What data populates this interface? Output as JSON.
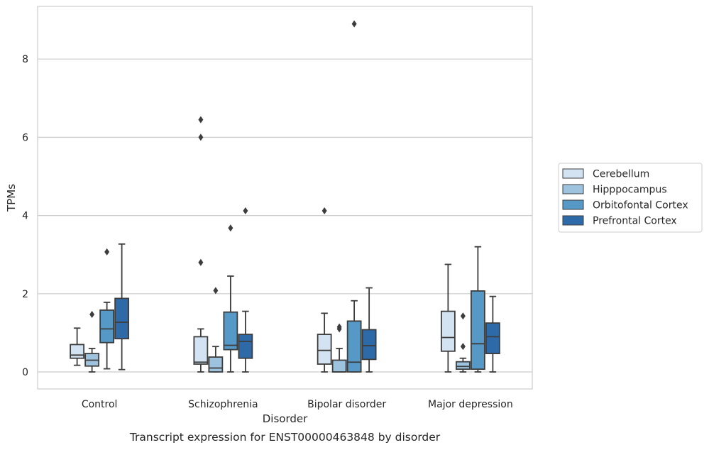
{
  "chart_data": {
    "type": "box",
    "title": "Transcript expression for ENST00000463848 by disorder",
    "xlabel": "Disorder",
    "ylabel": "TPMs",
    "ylim": [
      -0.42,
      9.3
    ],
    "yticks": [
      0,
      2,
      4,
      6,
      8
    ],
    "grid": "horizontal",
    "legend_position": "right",
    "categories": [
      "Control",
      "Schizophrenia",
      "Bipolar disorder",
      "Major depression"
    ],
    "series": [
      {
        "name": "Cerebellum",
        "color": "#d4e3f1",
        "boxes": [
          {
            "whislo": 0.17,
            "q1": 0.35,
            "med": 0.43,
            "q3": 0.7,
            "whishi": 1.12,
            "fliers": []
          },
          {
            "whislo": 0.0,
            "q1": 0.2,
            "med": 0.25,
            "q3": 0.9,
            "whishi": 1.1,
            "fliers": [
              2.8,
              6.0,
              6.45
            ]
          },
          {
            "whislo": 0.0,
            "q1": 0.2,
            "med": 0.55,
            "q3": 0.96,
            "whishi": 1.5,
            "fliers": [
              4.12
            ]
          },
          {
            "whislo": 0.0,
            "q1": 0.53,
            "med": 0.88,
            "q3": 1.55,
            "whishi": 2.75,
            "fliers": []
          }
        ]
      },
      {
        "name": "Hipppocampus",
        "color": "#9dc3de",
        "boxes": [
          {
            "whislo": 0.0,
            "q1": 0.15,
            "med": 0.3,
            "q3": 0.47,
            "whishi": 0.6,
            "fliers": [
              1.47
            ]
          },
          {
            "whislo": 0.0,
            "q1": 0.0,
            "med": 0.1,
            "q3": 0.38,
            "whishi": 0.65,
            "fliers": [
              2.08
            ]
          },
          {
            "whislo": 0.0,
            "q1": 0.0,
            "med": 0.0,
            "q3": 0.3,
            "whishi": 0.6,
            "fliers": [
              1.1,
              1.15
            ]
          },
          {
            "whislo": 0.0,
            "q1": 0.07,
            "med": 0.14,
            "q3": 0.26,
            "whishi": 0.35,
            "fliers": [
              0.65,
              1.43
            ]
          }
        ]
      },
      {
        "name": "Orbitofontal Cortex",
        "color": "#5699c7",
        "boxes": [
          {
            "whislo": 0.08,
            "q1": 0.75,
            "med": 1.1,
            "q3": 1.58,
            "whishi": 1.78,
            "fliers": [
              3.07
            ]
          },
          {
            "whislo": 0.0,
            "q1": 0.57,
            "med": 0.68,
            "q3": 1.53,
            "whishi": 2.45,
            "fliers": [
              3.68
            ]
          },
          {
            "whislo": 0.0,
            "q1": 0.0,
            "med": 0.25,
            "q3": 1.3,
            "whishi": 1.82,
            "fliers": [
              8.9
            ]
          },
          {
            "whislo": 0.0,
            "q1": 0.07,
            "med": 0.72,
            "q3": 2.07,
            "whishi": 3.2,
            "fliers": []
          }
        ]
      },
      {
        "name": "Prefrontal Cortex",
        "color": "#2f6aa8",
        "boxes": [
          {
            "whislo": 0.06,
            "q1": 0.85,
            "med": 1.27,
            "q3": 1.88,
            "whishi": 3.27,
            "fliers": []
          },
          {
            "whislo": 0.0,
            "q1": 0.35,
            "med": 0.78,
            "q3": 0.96,
            "whishi": 1.55,
            "fliers": [
              4.12
            ]
          },
          {
            "whislo": 0.0,
            "q1": 0.32,
            "med": 0.67,
            "q3": 1.08,
            "whishi": 2.15,
            "fliers": []
          },
          {
            "whislo": 0.0,
            "q1": 0.47,
            "med": 0.9,
            "q3": 1.25,
            "whishi": 1.93,
            "fliers": []
          }
        ]
      }
    ]
  }
}
